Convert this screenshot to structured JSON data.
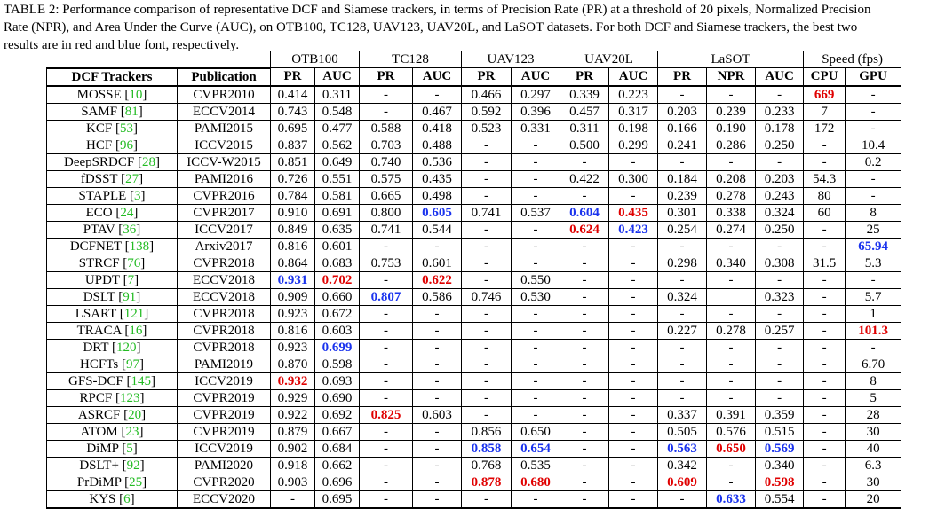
{
  "caption": {
    "lines": [
      "TABLE 2: Performance comparison of representative DCF and Siamese trackers, in terms of Precision Rate (PR) at a threshold of 20 pixels, Normalized Precision",
      "Rate (NPR), and Area Under the Curve (AUC), on OTB100, TC128, UAV123, UAV20L, and LaSOT datasets. For both DCF and Siamese trackers, the best two",
      "results are in red and blue font, respectively."
    ]
  },
  "groups": [
    {
      "label": "OTB100",
      "span": 2
    },
    {
      "label": "TC128",
      "span": 2
    },
    {
      "label": "UAV123",
      "span": 2
    },
    {
      "label": "UAV20L",
      "span": 2
    },
    {
      "label": "LaSOT",
      "span": 3
    },
    {
      "label": "Speed (fps)",
      "span": 2
    }
  ],
  "headers": [
    "DCF Trackers",
    "Publication",
    "PR",
    "AUC",
    "PR",
    "AUC",
    "PR",
    "AUC",
    "PR",
    "AUC",
    "PR",
    "NPR",
    "AUC",
    "CPU",
    "GPU"
  ],
  "colors": {
    "best1": "#e00000",
    "best2": "#1a33ee",
    "ref": "#22bb22"
  },
  "rows": [
    {
      "name": "MOSSE",
      "ref": "10",
      "pub": "CVPR2010",
      "vals": [
        "0.414",
        "0.311",
        "-",
        "-",
        "0.466",
        "0.297",
        "0.339",
        "0.223",
        "-",
        "-",
        "-",
        "669",
        "-"
      ],
      "hl": {
        "11": "red"
      }
    },
    {
      "name": "SAMF",
      "ref": "81",
      "pub": "ECCV2014",
      "vals": [
        "0.743",
        "0.548",
        "-",
        "0.467",
        "0.592",
        "0.396",
        "0.457",
        "0.317",
        "0.203",
        "0.239",
        "0.233",
        "7",
        "-"
      ],
      "hl": {}
    },
    {
      "name": "KCF",
      "ref": "53",
      "pub": "PAMI2015",
      "vals": [
        "0.695",
        "0.477",
        "0.588",
        "0.418",
        "0.523",
        "0.331",
        "0.311",
        "0.198",
        "0.166",
        "0.190",
        "0.178",
        "172",
        "-"
      ],
      "hl": {}
    },
    {
      "name": "HCF",
      "ref": "96",
      "pub": "ICCV2015",
      "vals": [
        "0.837",
        "0.562",
        "0.703",
        "0.488",
        "-",
        "-",
        "0.500",
        "0.299",
        "0.241",
        "0.286",
        "0.250",
        "-",
        "10.4"
      ],
      "hl": {}
    },
    {
      "name": "DeepSRDCF",
      "ref": "28",
      "pub": "ICCV-W2015",
      "vals": [
        "0.851",
        "0.649",
        "0.740",
        "0.536",
        "-",
        "-",
        "-",
        "-",
        "-",
        "-",
        "-",
        "-",
        "0.2"
      ],
      "hl": {}
    },
    {
      "name": "fDSST",
      "ref": "27",
      "pub": "PAMI2016",
      "vals": [
        "0.726",
        "0.551",
        "0.575",
        "0.435",
        "-",
        "-",
        "0.422",
        "0.300",
        "0.184",
        "0.208",
        "0.203",
        "54.3",
        "-"
      ],
      "hl": {}
    },
    {
      "name": "STAPLE",
      "ref": "3",
      "pub": "CVPR2016",
      "vals": [
        "0.784",
        "0.581",
        "0.665",
        "0.498",
        "-",
        "-",
        "-",
        "-",
        "0.239",
        "0.278",
        "0.243",
        "80",
        "-"
      ],
      "hl": {}
    },
    {
      "name": "ECO",
      "ref": "24",
      "pub": "CVPR2017",
      "vals": [
        "0.910",
        "0.691",
        "0.800",
        "0.605",
        "0.741",
        "0.537",
        "0.604",
        "0.435",
        "0.301",
        "0.338",
        "0.324",
        "60",
        "8"
      ],
      "hl": {
        "3": "blue",
        "6": "blue",
        "7": "red"
      }
    },
    {
      "name": "PTAV",
      "ref": "36",
      "pub": "ICCV2017",
      "vals": [
        "0.849",
        "0.635",
        "0.741",
        "0.544",
        "-",
        "-",
        "0.624",
        "0.423",
        "0.254",
        "0.274",
        "0.250",
        "-",
        "25"
      ],
      "hl": {
        "6": "red",
        "7": "blue"
      }
    },
    {
      "name": "DCFNET",
      "ref": "138",
      "pub": "Arxiv2017",
      "vals": [
        "0.816",
        "0.601",
        "-",
        "-",
        "-",
        "-",
        "-",
        "-",
        "-",
        "-",
        "-",
        "-",
        "65.94"
      ],
      "hl": {
        "12": "blue"
      }
    },
    {
      "name": "STRCF",
      "ref": "76",
      "pub": "CVPR2018",
      "vals": [
        "0.864",
        "0.683",
        "0.753",
        "0.601",
        "-",
        "-",
        "-",
        "-",
        "0.298",
        "0.340",
        "0.308",
        "31.5",
        "5.3"
      ],
      "hl": {}
    },
    {
      "name": "UPDT",
      "ref": "7",
      "pub": "ECCV2018",
      "vals": [
        "0.931",
        "0.702",
        "-",
        "0.622",
        "-",
        "0.550",
        "-",
        "-",
        "-",
        "-",
        "-",
        "-",
        "-"
      ],
      "hl": {
        "0": "blue",
        "1": "red",
        "3": "red"
      }
    },
    {
      "name": "DSLT",
      "ref": "91",
      "pub": "ECCV2018",
      "vals": [
        "0.909",
        "0.660",
        "0.807",
        "0.586",
        "0.746",
        "0.530",
        "-",
        "-",
        "0.324",
        "",
        "0.323",
        "-",
        "5.7"
      ],
      "hl": {
        "2": "blue"
      }
    },
    {
      "name": "LSART",
      "ref": "121",
      "pub": "CVPR2018",
      "vals": [
        "0.923",
        "0.672",
        "-",
        "-",
        "-",
        "-",
        "-",
        "-",
        "-",
        "-",
        "-",
        "-",
        "1"
      ],
      "hl": {}
    },
    {
      "name": "TRACA",
      "ref": "16",
      "pub": "CVPR2018",
      "vals": [
        "0.816",
        "0.603",
        "-",
        "-",
        "-",
        "-",
        "-",
        "-",
        "0.227",
        "0.278",
        "0.257",
        "-",
        "101.3"
      ],
      "hl": {
        "12": "red"
      }
    },
    {
      "name": "DRT",
      "ref": "120",
      "pub": "CVPR2018",
      "vals": [
        "0.923",
        "0.699",
        "-",
        "-",
        "-",
        "-",
        "-",
        "-",
        "-",
        "-",
        "-",
        "-",
        "-"
      ],
      "hl": {
        "1": "blue"
      }
    },
    {
      "name": "HCFTs",
      "ref": "97",
      "pub": "PAMI2019",
      "vals": [
        "0.870",
        "0.598",
        "-",
        "-",
        "-",
        "-",
        "-",
        "-",
        "-",
        "-",
        "-",
        "-",
        "6.70"
      ],
      "hl": {}
    },
    {
      "name": "GFS-DCF",
      "ref": "145",
      "pub": "ICCV2019",
      "vals": [
        "0.932",
        "0.693",
        "-",
        "-",
        "-",
        "-",
        "-",
        "-",
        "-",
        "-",
        "-",
        "-",
        "8"
      ],
      "hl": {
        "0": "red"
      }
    },
    {
      "name": "RPCF",
      "ref": "123",
      "pub": "CVPR2019",
      "vals": [
        "0.929",
        "0.690",
        "-",
        "-",
        "-",
        "-",
        "-",
        "-",
        "-",
        "-",
        "-",
        "-",
        "5"
      ],
      "hl": {}
    },
    {
      "name": "ASRCF",
      "ref": "20",
      "pub": "CVPR2019",
      "vals": [
        "0.922",
        "0.692",
        "0.825",
        "0.603",
        "-",
        "-",
        "-",
        "-",
        "0.337",
        "0.391",
        "0.359",
        "-",
        "28"
      ],
      "hl": {
        "2": "red"
      }
    },
    {
      "name": "ATOM",
      "ref": "23",
      "pub": "CVPR2019",
      "vals": [
        "0.879",
        "0.667",
        "-",
        "-",
        "0.856",
        "0.650",
        "-",
        "-",
        "0.505",
        "0.576",
        "0.515",
        "-",
        "30"
      ],
      "hl": {}
    },
    {
      "name": "DiMP",
      "ref": "5",
      "pub": "ICCV2019",
      "vals": [
        "0.902",
        "0.684",
        "-",
        "-",
        "0.858",
        "0.654",
        "-",
        "-",
        "0.563",
        "0.650",
        "0.569",
        "-",
        "40"
      ],
      "hl": {
        "4": "blue",
        "5": "blue",
        "8": "blue",
        "9": "red",
        "10": "blue"
      }
    },
    {
      "name": "DSLT+",
      "ref": "92",
      "pub": "PAMI2020",
      "vals": [
        "0.918",
        "0.662",
        "-",
        "-",
        "0.768",
        "0.535",
        "-",
        "-",
        "0.342",
        "-",
        "0.340",
        "-",
        "6.3"
      ],
      "hl": {}
    },
    {
      "name": "PrDiMP",
      "ref": "25",
      "pub": "CVPR2020",
      "vals": [
        "0.903",
        "0.696",
        "-",
        "-",
        "0.878",
        "0.680",
        "-",
        "-",
        "0.609",
        "-",
        "0.598",
        "-",
        "30"
      ],
      "hl": {
        "4": "red",
        "5": "red",
        "8": "red",
        "10": "red"
      }
    },
    {
      "name": "KYS",
      "ref": "6",
      "pub": "ECCV2020",
      "vals": [
        "-",
        "0.695",
        "-",
        "-",
        "-",
        "-",
        "-",
        "-",
        "-",
        "0.633",
        "0.554",
        "-",
        "20"
      ],
      "hl": {
        "9": "blue"
      }
    }
  ]
}
